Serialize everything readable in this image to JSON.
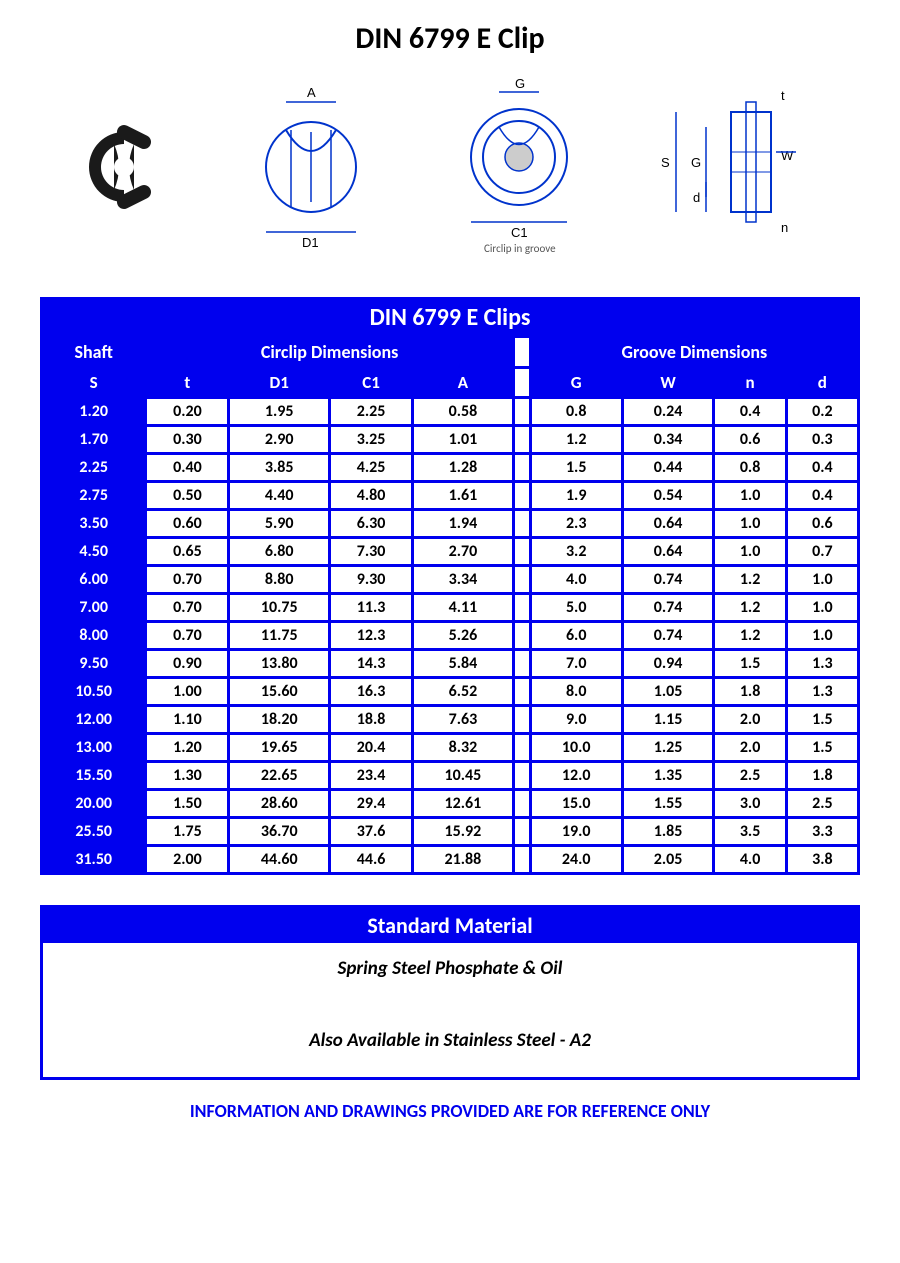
{
  "title": "DIN 6799 E Clip",
  "diagrams": {
    "labels": {
      "A": "A",
      "D1": "D1",
      "G": "G",
      "C1": "C1",
      "S": "S",
      "W": "W",
      "t": "t",
      "n": "n",
      "d": "d"
    },
    "caption": "Circlip in groove"
  },
  "table": {
    "title": "DIN 6799 E Clips",
    "group_shaft": "Shaft",
    "group_circlip": "Circlip Dimensions",
    "group_groove": "Groove Dimensions",
    "cols": {
      "S": "S",
      "t": "t",
      "D1": "D1",
      "C1": "C1",
      "A": "A",
      "G": "G",
      "W": "W",
      "n": "n",
      "d": "d"
    },
    "rows": [
      {
        "S": "1.20",
        "t": "0.20",
        "D1": "1.95",
        "C1": "2.25",
        "A": "0.58",
        "G": "0.8",
        "W": "0.24",
        "n": "0.4",
        "d": "0.2"
      },
      {
        "S": "1.70",
        "t": "0.30",
        "D1": "2.90",
        "C1": "3.25",
        "A": "1.01",
        "G": "1.2",
        "W": "0.34",
        "n": "0.6",
        "d": "0.3"
      },
      {
        "S": "2.25",
        "t": "0.40",
        "D1": "3.85",
        "C1": "4.25",
        "A": "1.28",
        "G": "1.5",
        "W": "0.44",
        "n": "0.8",
        "d": "0.4"
      },
      {
        "S": "2.75",
        "t": "0.50",
        "D1": "4.40",
        "C1": "4.80",
        "A": "1.61",
        "G": "1.9",
        "W": "0.54",
        "n": "1.0",
        "d": "0.4"
      },
      {
        "S": "3.50",
        "t": "0.60",
        "D1": "5.90",
        "C1": "6.30",
        "A": "1.94",
        "G": "2.3",
        "W": "0.64",
        "n": "1.0",
        "d": "0.6"
      },
      {
        "S": "4.50",
        "t": "0.65",
        "D1": "6.80",
        "C1": "7.30",
        "A": "2.70",
        "G": "3.2",
        "W": "0.64",
        "n": "1.0",
        "d": "0.7"
      },
      {
        "S": "6.00",
        "t": "0.70",
        "D1": "8.80",
        "C1": "9.30",
        "A": "3.34",
        "G": "4.0",
        "W": "0.74",
        "n": "1.2",
        "d": "1.0"
      },
      {
        "S": "7.00",
        "t": "0.70",
        "D1": "10.75",
        "C1": "11.3",
        "A": "4.11",
        "G": "5.0",
        "W": "0.74",
        "n": "1.2",
        "d": "1.0"
      },
      {
        "S": "8.00",
        "t": "0.70",
        "D1": "11.75",
        "C1": "12.3",
        "A": "5.26",
        "G": "6.0",
        "W": "0.74",
        "n": "1.2",
        "d": "1.0"
      },
      {
        "S": "9.50",
        "t": "0.90",
        "D1": "13.80",
        "C1": "14.3",
        "A": "5.84",
        "G": "7.0",
        "W": "0.94",
        "n": "1.5",
        "d": "1.3"
      },
      {
        "S": "10.50",
        "t": "1.00",
        "D1": "15.60",
        "C1": "16.3",
        "A": "6.52",
        "G": "8.0",
        "W": "1.05",
        "n": "1.8",
        "d": "1.3"
      },
      {
        "S": "12.00",
        "t": "1.10",
        "D1": "18.20",
        "C1": "18.8",
        "A": "7.63",
        "G": "9.0",
        "W": "1.15",
        "n": "2.0",
        "d": "1.5"
      },
      {
        "S": "13.00",
        "t": "1.20",
        "D1": "19.65",
        "C1": "20.4",
        "A": "8.32",
        "G": "10.0",
        "W": "1.25",
        "n": "2.0",
        "d": "1.5"
      },
      {
        "S": "15.50",
        "t": "1.30",
        "D1": "22.65",
        "C1": "23.4",
        "A": "10.45",
        "G": "12.0",
        "W": "1.35",
        "n": "2.5",
        "d": "1.8"
      },
      {
        "S": "20.00",
        "t": "1.50",
        "D1": "28.60",
        "C1": "29.4",
        "A": "12.61",
        "G": "15.0",
        "W": "1.55",
        "n": "3.0",
        "d": "2.5"
      },
      {
        "S": "25.50",
        "t": "1.75",
        "D1": "36.70",
        "C1": "37.6",
        "A": "15.92",
        "G": "19.0",
        "W": "1.85",
        "n": "3.5",
        "d": "3.3"
      },
      {
        "S": "31.50",
        "t": "2.00",
        "D1": "44.60",
        "C1": "44.6",
        "A": "21.88",
        "G": "24.0",
        "W": "2.05",
        "n": "4.0",
        "d": "3.8"
      }
    ]
  },
  "material": {
    "header": "Standard Material",
    "line1": "Spring Steel Phosphate & Oil",
    "line2": "Also Available in Stainless Steel - A2"
  },
  "footer": "INFORMATION AND DRAWINGS PROVIDED ARE FOR REFERENCE ONLY",
  "colors": {
    "brand_blue": "#0000ee",
    "black": "#000000",
    "white": "#ffffff"
  }
}
